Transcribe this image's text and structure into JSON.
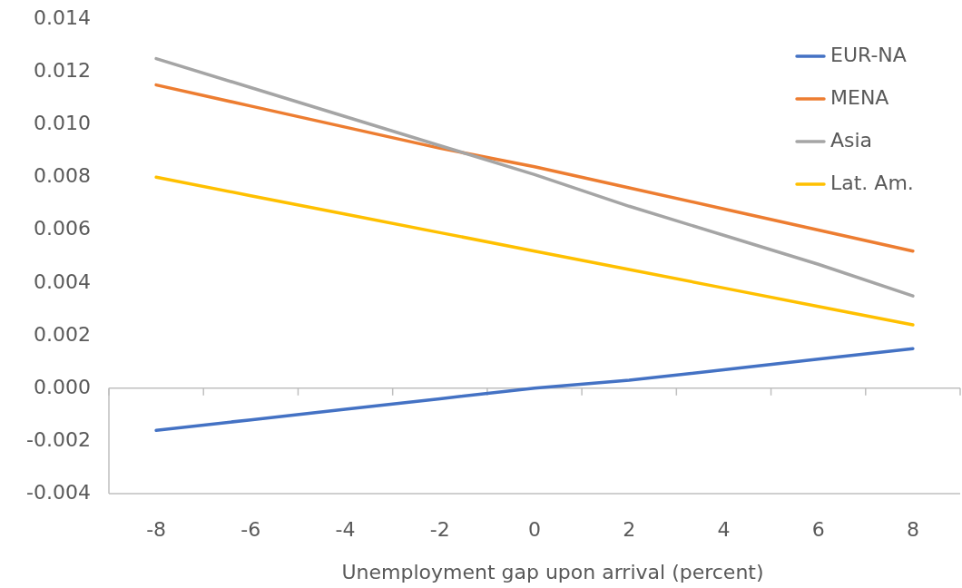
{
  "chart_data": {
    "type": "line",
    "xlabel": "Unemployment gap upon arrival  (percent)",
    "categories": [
      "-8",
      "-6",
      "-4",
      "-2",
      "0",
      "2",
      "4",
      "6",
      "8"
    ],
    "ylim": [
      -0.004,
      0.014
    ],
    "yticks": [
      {
        "value": -0.004,
        "label": "-0.004"
      },
      {
        "value": -0.002,
        "label": "-0.002"
      },
      {
        "value": 0,
        "label": "0.000"
      },
      {
        "value": 0.002,
        "label": "0.002"
      },
      {
        "value": 0.004,
        "label": "0.004"
      },
      {
        "value": 0.006,
        "label": "0.006"
      },
      {
        "value": 0.008,
        "label": "0.008"
      },
      {
        "value": 0.01,
        "label": "0.010"
      },
      {
        "value": 0.012,
        "label": "0.012"
      },
      {
        "value": 0.014,
        "label": "0.014"
      }
    ],
    "legend": "top right",
    "marker": "none",
    "line_style": "solid",
    "series": [
      {
        "name": "EUR-NA",
        "color": "#4472c4",
        "values": [
          -0.0016,
          -0.0012,
          -0.0008,
          -0.0004,
          0,
          0.0003,
          0.0007,
          0.0011,
          0.0015
        ]
      },
      {
        "name": "MENA",
        "color": "#ed7d31",
        "values": [
          0.0115,
          0.0107,
          0.0099,
          0.0091,
          0.0084,
          0.0076,
          0.0068,
          0.006,
          0.0052
        ]
      },
      {
        "name": "Asia",
        "color": "#a5a5a5",
        "values": [
          0.0125,
          0.0114,
          0.0103,
          0.0092,
          0.0081,
          0.0069,
          0.0058,
          0.0047,
          0.0035
        ]
      },
      {
        "name": "Lat. Am.",
        "color": "#ffc000",
        "values": [
          0.008,
          0.0073,
          0.0066,
          0.0059,
          0.0052,
          0.0045,
          0.0038,
          0.0031,
          0.0024
        ]
      }
    ]
  }
}
